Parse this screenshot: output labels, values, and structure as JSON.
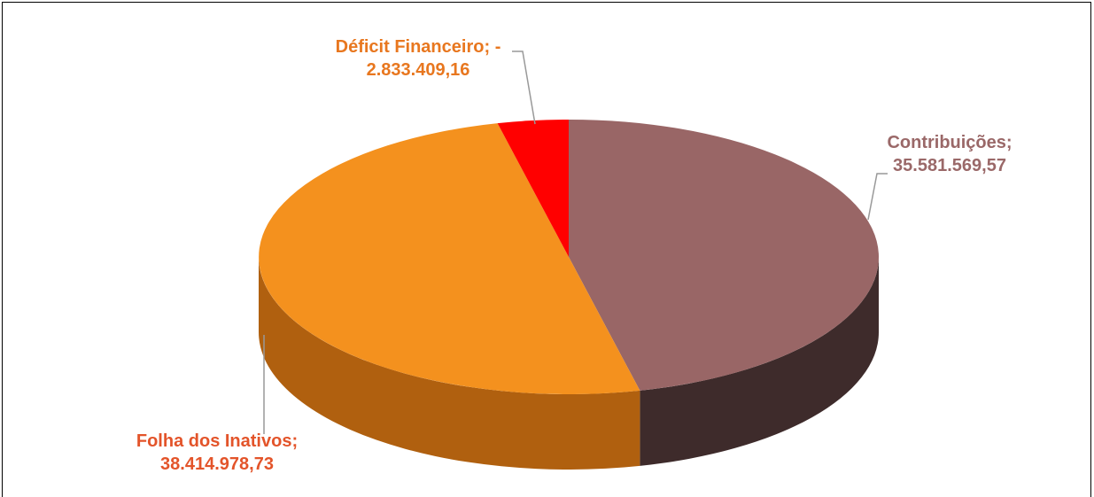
{
  "chart_data": {
    "type": "pie",
    "categories": [
      "Contribuições",
      "Folha dos Inativos",
      "Déficit Financeiro"
    ],
    "values": [
      35581569.57,
      38414978.73,
      -2833409.16
    ],
    "value_labels": [
      "35.581.569,57",
      "38.414.978,73",
      "- 2.833.409,16"
    ],
    "label_separator": ";",
    "colors": [
      "#996666",
      "#f4911e",
      "#ff0000"
    ],
    "side_colors": [
      "#3e2b2b",
      "#b0600f",
      "#a00000"
    ],
    "label_colors": [
      "#9a6868",
      "#e3542a",
      "#e8771f"
    ]
  }
}
